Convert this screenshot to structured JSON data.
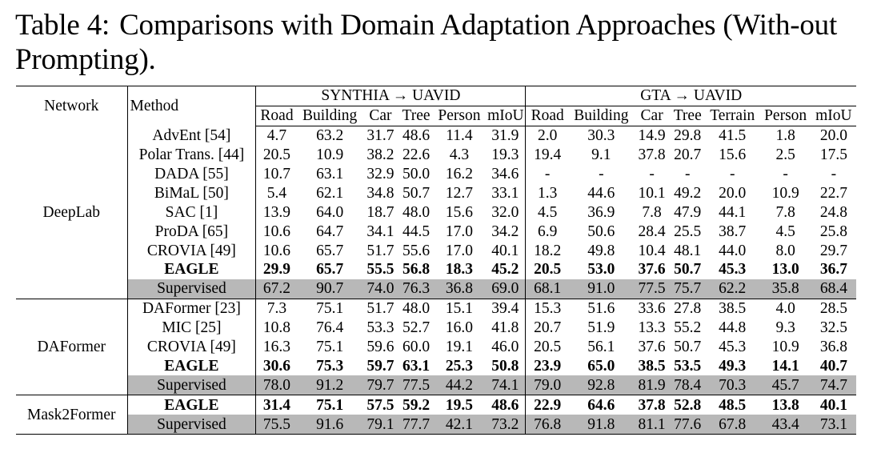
{
  "caption": {
    "label": "Table 4:",
    "text": "Comparisons with Domain Adaptation Approaches (With-out Prompting)."
  },
  "header": {
    "network": "Network",
    "method": "Method",
    "group1": "SYNTHIA → UAVID",
    "group2": "GTA → UAVID",
    "cols1": [
      "Road",
      "Building",
      "Car",
      "Tree",
      "Person",
      "mIoU"
    ],
    "cols2": [
      "Road",
      "Building",
      "Car",
      "Tree",
      "Terrain",
      "Person",
      "mIoU"
    ]
  },
  "groups": [
    {
      "network": "DeepLab",
      "rows": [
        {
          "method": "AdvEnt [54]",
          "bold": false,
          "supervised": false,
          "s": [
            "4.7",
            "63.2",
            "31.7",
            "48.6",
            "11.4",
            "31.9"
          ],
          "g": [
            "2.0",
            "30.3",
            "14.9",
            "29.8",
            "41.5",
            "1.8",
            "20.0"
          ]
        },
        {
          "method": "Polar Trans. [44]",
          "bold": false,
          "supervised": false,
          "s": [
            "20.5",
            "10.9",
            "38.2",
            "22.6",
            "4.3",
            "19.3"
          ],
          "g": [
            "19.4",
            "9.1",
            "37.8",
            "20.7",
            "15.6",
            "2.5",
            "17.5"
          ]
        },
        {
          "method": "DADA [55]",
          "bold": false,
          "supervised": false,
          "s": [
            "10.7",
            "63.1",
            "32.9",
            "50.0",
            "16.2",
            "34.6"
          ],
          "g": [
            "-",
            "-",
            "-",
            "-",
            "-",
            "-",
            "-"
          ]
        },
        {
          "method": "BiMaL [50]",
          "bold": false,
          "supervised": false,
          "s": [
            "5.4",
            "62.1",
            "34.8",
            "50.7",
            "12.7",
            "33.1"
          ],
          "g": [
            "1.3",
            "44.6",
            "10.1",
            "49.2",
            "20.0",
            "10.9",
            "22.7"
          ]
        },
        {
          "method": "SAC [1]",
          "bold": false,
          "supervised": false,
          "s": [
            "13.9",
            "64.0",
            "18.7",
            "48.0",
            "15.6",
            "32.0"
          ],
          "g": [
            "4.5",
            "36.9",
            "7.8",
            "47.9",
            "44.1",
            "7.8",
            "24.8"
          ]
        },
        {
          "method": "ProDA [65]",
          "bold": false,
          "supervised": false,
          "s": [
            "10.6",
            "64.7",
            "34.1",
            "44.5",
            "17.0",
            "34.2"
          ],
          "g": [
            "6.9",
            "50.6",
            "28.4",
            "25.5",
            "38.7",
            "4.5",
            "25.8"
          ]
        },
        {
          "method": "CROVIA [49]",
          "bold": false,
          "supervised": false,
          "s": [
            "10.6",
            "65.7",
            "51.7",
            "55.6",
            "17.0",
            "40.1"
          ],
          "g": [
            "18.2",
            "49.8",
            "10.4",
            "48.1",
            "44.0",
            "8.0",
            "29.7"
          ]
        },
        {
          "method": "EAGLE",
          "bold": true,
          "supervised": false,
          "s": [
            "29.9",
            "65.7",
            "55.5",
            "56.8",
            "18.3",
            "45.2"
          ],
          "g": [
            "20.5",
            "53.0",
            "37.6",
            "50.7",
            "45.3",
            "13.0",
            "36.7"
          ]
        },
        {
          "method": "Supervised",
          "bold": false,
          "supervised": true,
          "s": [
            "67.2",
            "90.7",
            "74.0",
            "76.3",
            "36.8",
            "69.0"
          ],
          "g": [
            "68.1",
            "91.0",
            "77.5",
            "75.7",
            "62.2",
            "35.8",
            "68.4"
          ]
        }
      ]
    },
    {
      "network": "DAFormer",
      "rows": [
        {
          "method": "DAFormer [23]",
          "bold": false,
          "supervised": false,
          "s": [
            "7.3",
            "75.1",
            "51.7",
            "48.0",
            "15.1",
            "39.4"
          ],
          "g": [
            "15.3",
            "51.6",
            "33.6",
            "27.8",
            "38.5",
            "4.0",
            "28.5"
          ]
        },
        {
          "method": "MIC [25]",
          "bold": false,
          "supervised": false,
          "s": [
            "10.8",
            "76.4",
            "53.3",
            "52.7",
            "16.0",
            "41.8"
          ],
          "g": [
            "20.7",
            "51.9",
            "13.3",
            "55.2",
            "44.8",
            "9.3",
            "32.5"
          ]
        },
        {
          "method": "CROVIA [49]",
          "bold": false,
          "supervised": false,
          "s": [
            "16.3",
            "75.1",
            "59.6",
            "60.0",
            "19.1",
            "46.0"
          ],
          "g": [
            "20.5",
            "56.1",
            "37.6",
            "50.7",
            "45.3",
            "10.9",
            "36.8"
          ]
        },
        {
          "method": "EAGLE",
          "bold": true,
          "supervised": false,
          "s": [
            "30.6",
            "75.3",
            "59.7",
            "63.1",
            "25.3",
            "50.8"
          ],
          "g": [
            "23.9",
            "65.0",
            "38.5",
            "53.5",
            "49.3",
            "14.1",
            "40.7"
          ]
        },
        {
          "method": "Supervised",
          "bold": false,
          "supervised": true,
          "s": [
            "78.0",
            "91.2",
            "79.7",
            "77.5",
            "44.2",
            "74.1"
          ],
          "g": [
            "79.0",
            "92.8",
            "81.9",
            "78.4",
            "70.3",
            "45.7",
            "74.7"
          ]
        }
      ]
    },
    {
      "network": "Mask2Former",
      "rows": [
        {
          "method": "EAGLE",
          "bold": true,
          "supervised": false,
          "s": [
            "31.4",
            "75.1",
            "57.5",
            "59.2",
            "19.5",
            "48.6"
          ],
          "g": [
            "22.9",
            "64.6",
            "37.8",
            "52.8",
            "48.5",
            "13.8",
            "40.1"
          ]
        },
        {
          "method": "Supervised",
          "bold": false,
          "supervised": true,
          "s": [
            "75.5",
            "91.6",
            "79.1",
            "77.7",
            "42.1",
            "73.2"
          ],
          "g": [
            "76.8",
            "91.8",
            "81.1",
            "77.6",
            "67.8",
            "43.4",
            "73.1"
          ]
        }
      ]
    }
  ]
}
